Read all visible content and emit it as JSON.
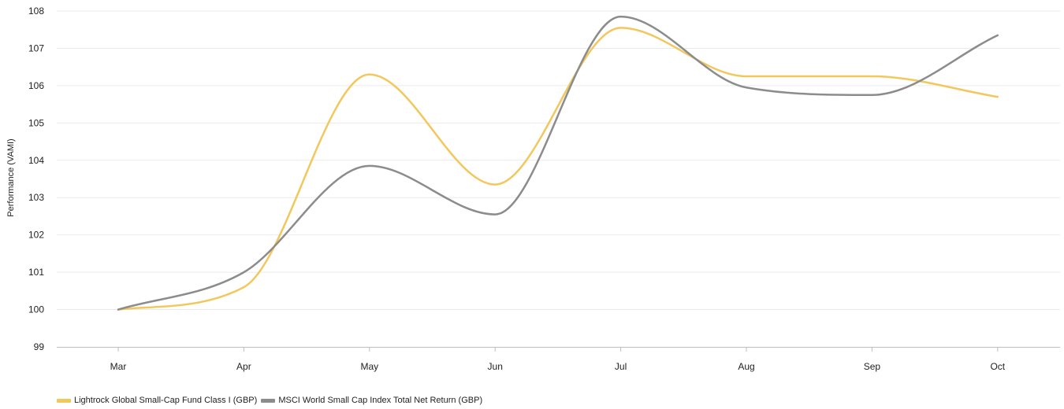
{
  "chart_data": {
    "type": "line",
    "title": "",
    "xlabel": "",
    "ylabel": "Performance (VAMI)",
    "categories": [
      "Mar",
      "Apr",
      "May",
      "Jun",
      "Jul",
      "Aug",
      "Sep",
      "Oct"
    ],
    "ylim": [
      99,
      108
    ],
    "yticks": [
      99,
      100,
      101,
      102,
      103,
      104,
      105,
      106,
      107,
      108
    ],
    "grid": true,
    "legend_position": "bottom-left",
    "series": [
      {
        "name": "Lightrock Global Small-Cap Fund Class I (GBP)",
        "color": "#F2C75C",
        "values": [
          100.0,
          100.6,
          106.3,
          103.35,
          107.55,
          106.25,
          106.25,
          105.7
        ]
      },
      {
        "name": "MSCI World Small Cap Index Total Net Return (GBP)",
        "color": "#8C8C8C",
        "values": [
          100.0,
          101.0,
          103.85,
          102.55,
          107.85,
          105.95,
          105.75,
          107.35
        ]
      }
    ]
  }
}
